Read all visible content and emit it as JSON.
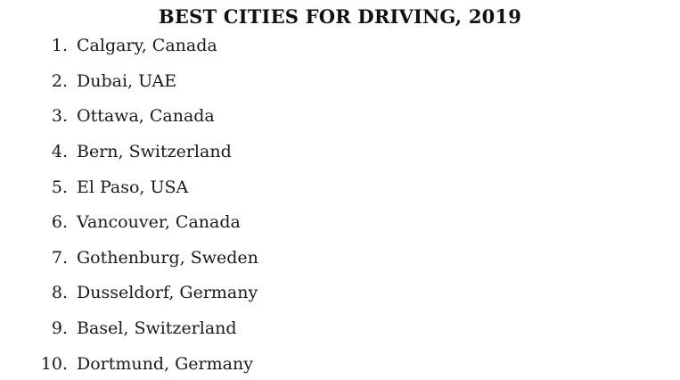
{
  "page": {
    "title": "BEST CITIES FOR DRIVING, 2019"
  },
  "list": {
    "items": [
      {
        "num": "1.",
        "city": "Calgary, Canada"
      },
      {
        "num": "2.",
        "city": "Dubai, UAE"
      },
      {
        "num": "3.",
        "city": "Ottawa, Canada"
      },
      {
        "num": "4.",
        "city": "Bern, Switzerland"
      },
      {
        "num": "5.",
        "city": "El Paso, USA"
      },
      {
        "num": "6.",
        "city": "Vancouver, Canada"
      },
      {
        "num": "7.",
        "city": "Gothenburg, Sweden"
      },
      {
        "num": "8.",
        "city": "Dusseldorf, Germany"
      },
      {
        "num": "9.",
        "city": "Basel, Switzerland"
      },
      {
        "num": "10.",
        "city": "Dortmund, Germany"
      }
    ]
  },
  "colors": {
    "background": "#ffffff",
    "text": "#1a1a1a",
    "title_text": "#111111"
  }
}
